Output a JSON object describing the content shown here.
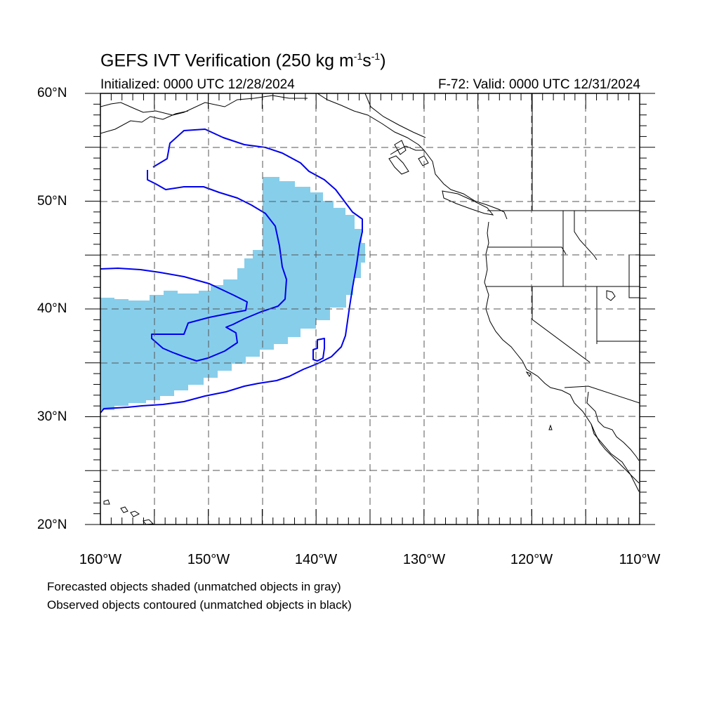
{
  "title": {
    "main": "GEFS IVT Verification (250 kg m",
    "exp1": "-1",
    "mid": "s",
    "exp2": "-1",
    "close": ")"
  },
  "initialized": "Initialized: 0000 UTC 12/28/2024",
  "valid": "F-72: Valid: 0000 UTC 12/31/2024",
  "lat_labels": [
    "60°N",
    "50°N",
    "40°N",
    "30°N",
    "20°N"
  ],
  "lon_labels": [
    "160°W",
    "150°W",
    "140°W",
    "130°W",
    "120°W",
    "110°W"
  ],
  "footnotes": [
    "Forecasted objects shaded (unmatched objects in gray)",
    "Observed objects contoured (unmatched objects in black)"
  ],
  "colors": {
    "forecast_fill": "#87ceeb",
    "observed_contour": "#0000ee",
    "coast": "#000000",
    "grid": "#555555"
  },
  "map_extent": {
    "lon": [
      -160,
      -110
    ],
    "lat": [
      20,
      60
    ]
  }
}
